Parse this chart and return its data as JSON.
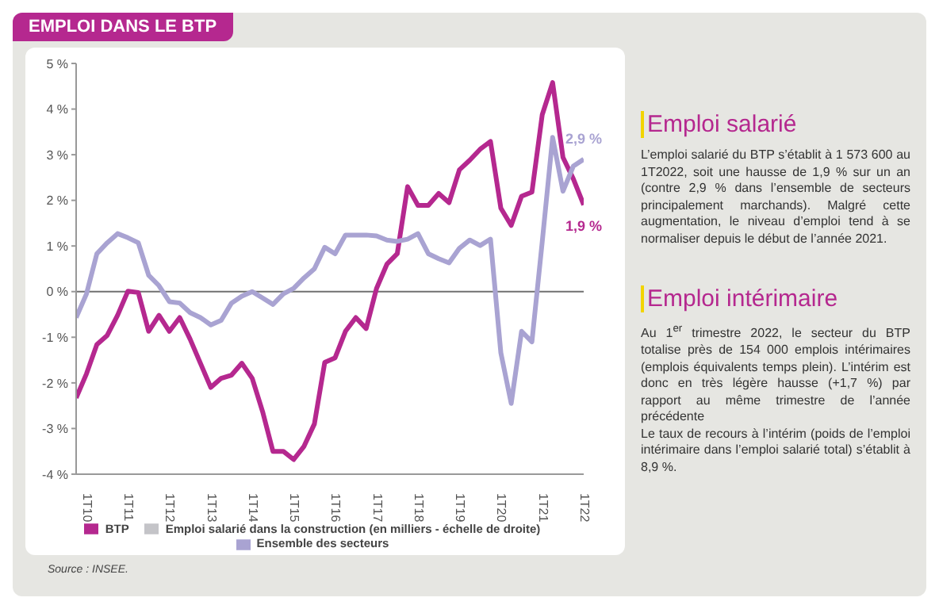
{
  "chart_data": {
    "type": "line",
    "title": "EMPLOI DANS LE BTP",
    "categories": [
      null,
      "1T10",
      null,
      null,
      null,
      "1T11",
      null,
      null,
      null,
      "1T12",
      null,
      null,
      null,
      "1T13",
      null,
      null,
      null,
      "1T14",
      null,
      null,
      null,
      "1T15",
      null,
      null,
      null,
      "1T16",
      null,
      null,
      null,
      "1T17",
      null,
      null,
      null,
      "1T18",
      null,
      null,
      null,
      "1T19",
      null,
      null,
      null,
      "1T20",
      null,
      null,
      null,
      "1T21",
      null,
      null,
      null,
      "1T22"
    ],
    "series": [
      {
        "name": "Emploi salarié dans la construction (en milliers - échelle de droite)",
        "color": "#c4c4c8",
        "values": [
          null,
          null,
          null,
          null,
          null,
          null,
          null,
          null,
          null,
          null,
          null,
          null,
          null,
          null,
          null,
          null,
          null,
          null,
          null,
          null,
          null,
          null,
          null,
          null,
          null,
          null,
          null,
          null,
          null,
          null,
          null,
          null,
          null,
          null,
          null,
          null,
          null,
          null,
          null,
          null,
          null,
          null,
          null,
          null,
          null,
          null,
          null,
          null,
          null,
          null
        ]
      },
      {
        "name": "BTP",
        "color": "#b5288f",
        "values": [
          -2.33,
          -1.8,
          -1.16,
          -0.96,
          -0.52,
          0.01,
          -0.02,
          -0.87,
          -0.52,
          -0.87,
          -0.57,
          -1.04,
          -1.57,
          -2.1,
          -1.9,
          -1.83,
          -1.57,
          -1.9,
          -2.63,
          -3.5,
          -3.5,
          -3.68,
          -3.39,
          -2.9,
          -1.55,
          -1.45,
          -0.87,
          -0.57,
          -0.81,
          0.07,
          0.6,
          0.83,
          2.3,
          1.89,
          1.89,
          2.15,
          1.95,
          2.67,
          2.88,
          3.12,
          3.29,
          1.83,
          1.45,
          2.09,
          2.18,
          3.88,
          4.58,
          2.94,
          2.47,
          1.9
        ]
      },
      {
        "name": "Ensemble des secteurs",
        "color": "#a9a3d2",
        "values": [
          -0.57,
          -0.05,
          0.83,
          1.07,
          1.27,
          1.18,
          1.07,
          0.36,
          0.13,
          -0.22,
          -0.25,
          -0.46,
          -0.57,
          -0.73,
          -0.63,
          -0.25,
          -0.1,
          0,
          -0.14,
          -0.28,
          -0.05,
          0.07,
          0.3,
          0.5,
          0.97,
          0.83,
          1.24,
          1.24,
          1.24,
          1.22,
          1.13,
          1.1,
          1.15,
          1.27,
          0.83,
          0.72,
          0.63,
          0.95,
          1.13,
          1.01,
          1.15,
          -1.34,
          -2.45,
          -0.87,
          -1.1,
          1.1,
          3.38,
          2.2,
          2.75,
          2.9
        ]
      }
    ],
    "ylim": [
      -4,
      5
    ],
    "yticks": [
      {
        "value": -4,
        "label": "-4 %"
      },
      {
        "value": -3,
        "label": "-3 %"
      },
      {
        "value": -2,
        "label": "-2 %"
      },
      {
        "value": -1,
        "label": "-1 %"
      },
      {
        "value": 0,
        "label": "0 %"
      },
      {
        "value": 1,
        "label": "1 %"
      },
      {
        "value": 2,
        "label": "2 %"
      },
      {
        "value": 3,
        "label": "3 %"
      },
      {
        "value": 4,
        "label": "4 %"
      },
      {
        "value": 5,
        "label": "5 %"
      }
    ],
    "ref_lines": [
      {
        "axis": "y",
        "value": 0,
        "color": "#707070"
      }
    ],
    "grid": false,
    "legend": "bottom",
    "marker": "none",
    "line_style": "solid",
    "annotations": [
      {
        "text": "2,9 %",
        "x": "1T22",
        "y": 2.9
      },
      {
        "text": "1,9 %",
        "x": "1T22",
        "y": 1.9
      },
      "Emploi salarié",
      "L’emploi salarié du BTP s’établit à 1 573 600 au 1T2022, soit une hausse de 1,9 % sur un an (contre 2,9 % dans l’ensemble de secteurs principalement marchands). Malgré cette augmentation, le niveau d’emploi tend à se normaliser depuis le début de l’année 2021.",
      "Emploi intérimaire",
      "Au 1$^{er}$ trimestre 2022, le secteur du BTP totalise près de 154 000 emplois intérimaires (emplois équivalents temps plein). L’intérim est donc en très légère hausse (+1,7 %) par rapport au même trimestre de l’année précédente\nLe taux de recours à l’intérim (poids de l’emploi intérimaire dans l’emploi salarié total) s’établit à 8,9 %.",
      "Source : INSEE."
    ]
  }
}
